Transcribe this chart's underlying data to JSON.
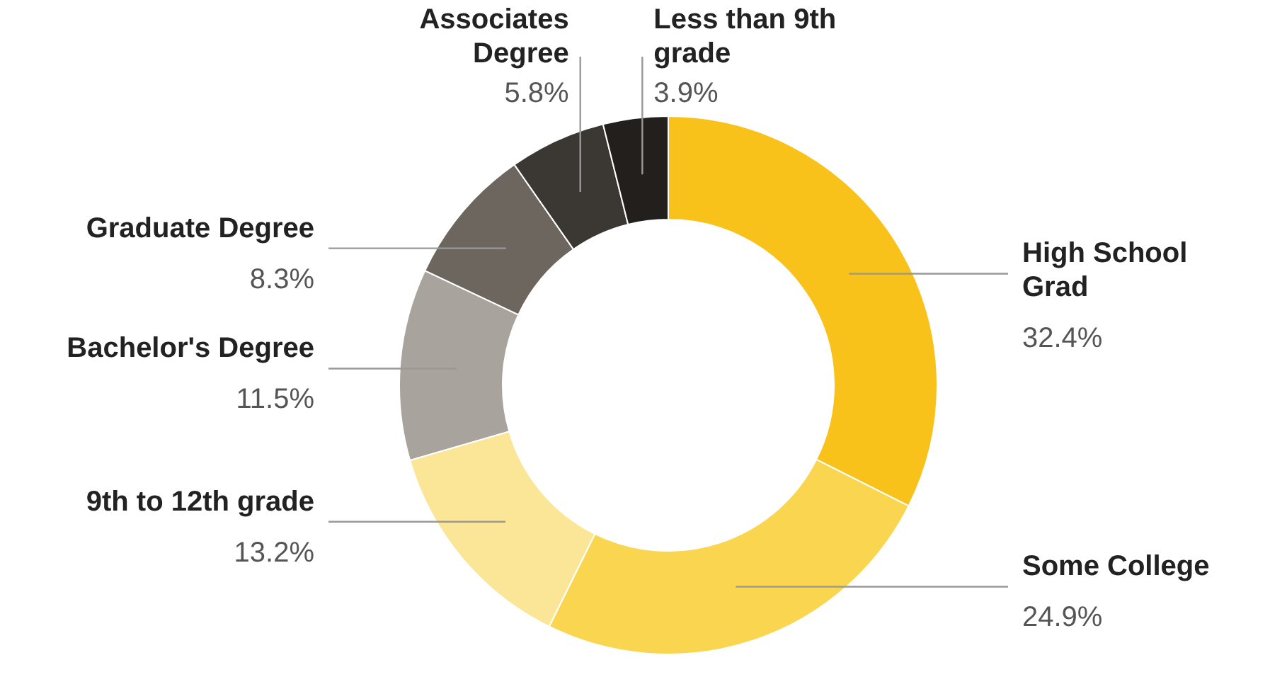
{
  "chart_data": {
    "type": "donut",
    "categories": [
      "High School Grad",
      "Some College",
      "9th to 12th grade",
      "Bachelor's Degree",
      "Graduate Degree",
      "Associates Degree",
      "Less than 9th grade"
    ],
    "values": [
      32.4,
      24.9,
      13.2,
      11.5,
      8.3,
      5.8,
      3.9
    ],
    "colors": [
      "#f9c21b",
      "#fad650",
      "#fbe597",
      "#a9a39d",
      "#6d665f",
      "#3b3834",
      "#221f1c"
    ],
    "value_labels": [
      "32.4%",
      "24.9%",
      "13.2%",
      "11.5%",
      "8.3%",
      "5.8%",
      "3.9%"
    ]
  }
}
